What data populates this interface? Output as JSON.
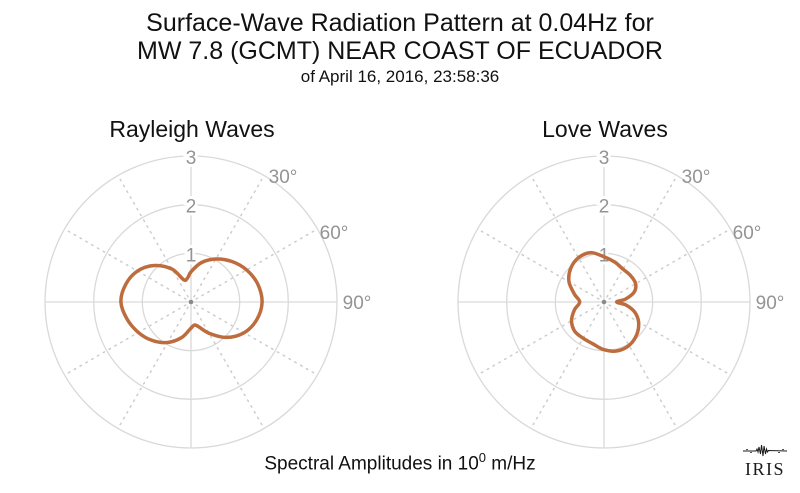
{
  "figure": {
    "title_line1": "Surface-Wave Radiation Pattern at 0.04Hz for",
    "title_line2": "MW 7.8 (GCMT) NEAR COAST OF ECUADOR",
    "title_line3": "of April 16, 2016, 23:58:36",
    "caption": {
      "prefix": "Spectral Amplitudes in 10",
      "exponent": "0",
      "suffix": " m/Hz"
    },
    "logo_text": "IRIS"
  },
  "colors": {
    "pattern_stroke": "#bd6c3e",
    "grid_line": "#d9d9d9",
    "spoke_dots": "#cccccc",
    "tick_label": "#949494",
    "center_dot": "#8a8a8a",
    "text": "#111111"
  },
  "chart_data": [
    {
      "type": "line",
      "projection": "polar",
      "title": "Rayleigh Waves",
      "r_axis": {
        "ticks": [
          1,
          2,
          3
        ],
        "max": 3
      },
      "theta_axis": {
        "labels": [
          "30°",
          "60°",
          "90°"
        ],
        "spokes_deg": [
          30,
          60,
          120,
          150,
          210,
          240,
          300,
          330
        ]
      },
      "series": [
        {
          "name": "rayleigh-radiation-amplitude",
          "units": "10^0 m/Hz",
          "points_azimuth_deg_amplitude": [
            [
              0,
              0.62
            ],
            [
              15,
              0.84
            ],
            [
              30,
              1.02
            ],
            [
              45,
              1.18
            ],
            [
              60,
              1.32
            ],
            [
              75,
              1.42
            ],
            [
              90,
              1.46
            ],
            [
              105,
              1.4
            ],
            [
              120,
              1.26
            ],
            [
              135,
              1.03
            ],
            [
              150,
              0.74
            ],
            [
              163,
              0.53
            ],
            [
              172,
              0.48
            ],
            [
              182,
              0.56
            ],
            [
              195,
              0.76
            ],
            [
              210,
              0.96
            ],
            [
              225,
              1.12
            ],
            [
              240,
              1.25
            ],
            [
              255,
              1.36
            ],
            [
              270,
              1.44
            ],
            [
              285,
              1.39
            ],
            [
              300,
              1.27
            ],
            [
              315,
              1.06
            ],
            [
              330,
              0.78
            ],
            [
              342,
              0.48
            ],
            [
              352,
              0.5
            ]
          ]
        }
      ]
    },
    {
      "type": "line",
      "projection": "polar",
      "title": "Love Waves",
      "r_axis": {
        "ticks": [
          1,
          2,
          3
        ],
        "max": 3
      },
      "theta_axis": {
        "labels": [
          "30°",
          "60°",
          "90°"
        ],
        "spokes_deg": [
          30,
          60,
          120,
          150,
          210,
          240,
          300,
          330
        ]
      },
      "series": [
        {
          "name": "love-radiation-amplitude",
          "units": "10^0 m/Hz",
          "points_azimuth_deg_amplitude": [
            [
              0,
              0.93
            ],
            [
              15,
              0.85
            ],
            [
              30,
              0.78
            ],
            [
              45,
              0.77
            ],
            [
              60,
              0.75
            ],
            [
              72,
              0.65
            ],
            [
              82,
              0.45
            ],
            [
              90,
              0.26
            ],
            [
              98,
              0.46
            ],
            [
              108,
              0.66
            ],
            [
              120,
              0.82
            ],
            [
              135,
              0.95
            ],
            [
              150,
              1.03
            ],
            [
              165,
              1.04
            ],
            [
              180,
              0.98
            ],
            [
              195,
              0.89
            ],
            [
              210,
              0.86
            ],
            [
              225,
              0.85
            ],
            [
              240,
              0.77
            ],
            [
              255,
              0.63
            ],
            [
              270,
              0.5
            ],
            [
              285,
              0.63
            ],
            [
              300,
              0.83
            ],
            [
              315,
              0.97
            ],
            [
              330,
              1.05
            ],
            [
              345,
              1.05
            ]
          ]
        }
      ]
    }
  ]
}
